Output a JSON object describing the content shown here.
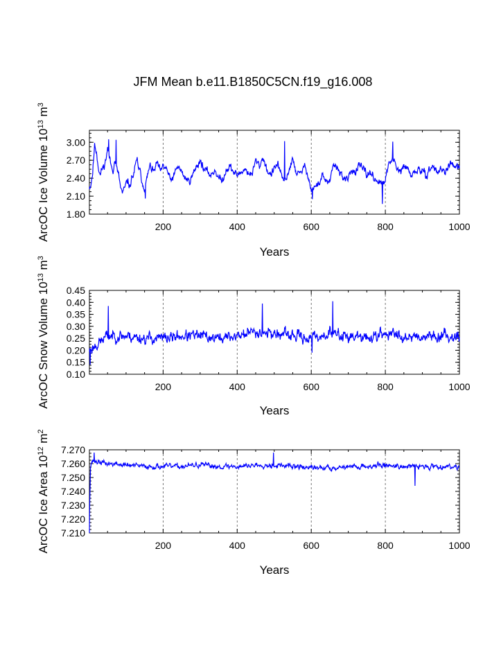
{
  "title": "JFM Mean b.e11.B1850C5CN.f19_g16.008",
  "line_color": "#0000ff",
  "chart_data": [
    {
      "type": "line",
      "title": "JFM Mean b.e11.B1850C5CN.f19_g16.008",
      "xlabel": "Years",
      "ylabel": "ArcOC Ice Volume 10",
      "ylabel_exp": "13",
      "ylabel_unit": " m",
      "ylabel_unit_exp": "3",
      "xlim": [
        1,
        1000
      ],
      "ylim": [
        1.8,
        3.2
      ],
      "xticks": [
        200,
        400,
        600,
        800,
        1000
      ],
      "yticks": [
        1.8,
        2.1,
        2.4,
        2.7,
        3.0
      ],
      "yticklabels": [
        "1.80",
        "2.10",
        "2.40",
        "2.70",
        "3.00"
      ],
      "grid": "vertical-dashed",
      "series": [
        {
          "name": "ArcOC Ice Volume",
          "anchors_x": [
            1,
            5,
            10,
            15,
            20,
            25,
            30,
            35,
            40,
            45,
            50,
            55,
            60,
            65,
            70,
            75,
            80,
            85,
            90,
            95,
            100,
            105,
            110,
            115,
            120,
            125,
            130,
            135,
            140,
            145,
            150,
            155,
            160,
            165,
            170,
            175,
            180,
            185,
            190,
            195,
            200,
            210,
            220,
            230,
            240,
            250,
            260,
            270,
            280,
            290,
            300,
            310,
            320,
            330,
            340,
            350,
            360,
            370,
            380,
            390,
            400,
            410,
            420,
            430,
            440,
            450,
            460,
            470,
            480,
            490,
            500,
            510,
            520,
            530,
            540,
            550,
            560,
            570,
            580,
            590,
            600,
            610,
            620,
            630,
            640,
            650,
            660,
            670,
            680,
            690,
            700,
            710,
            720,
            730,
            740,
            750,
            760,
            770,
            780,
            790,
            800,
            810,
            820,
            830,
            840,
            850,
            860,
            870,
            880,
            890,
            900,
            910,
            920,
            930,
            940,
            950,
            960,
            970,
            980,
            990,
            1000
          ],
          "anchors_y": [
            2.25,
            2.3,
            2.5,
            2.95,
            2.85,
            2.6,
            2.45,
            2.55,
            2.6,
            2.7,
            2.9,
            2.75,
            2.6,
            2.55,
            2.7,
            2.55,
            2.45,
            2.25,
            2.15,
            2.2,
            2.3,
            2.35,
            2.25,
            2.4,
            2.45,
            2.6,
            2.7,
            2.55,
            2.45,
            2.3,
            2.25,
            2.35,
            2.5,
            2.6,
            2.55,
            2.5,
            2.6,
            2.65,
            2.55,
            2.5,
            2.6,
            2.55,
            2.35,
            2.45,
            2.6,
            2.5,
            2.4,
            2.35,
            2.45,
            2.6,
            2.7,
            2.55,
            2.5,
            2.45,
            2.55,
            2.4,
            2.35,
            2.55,
            2.6,
            2.5,
            2.45,
            2.5,
            2.55,
            2.5,
            2.45,
            2.7,
            2.6,
            2.75,
            2.55,
            2.45,
            2.55,
            2.65,
            2.4,
            2.35,
            2.55,
            2.7,
            2.5,
            2.45,
            2.6,
            2.5,
            2.2,
            2.25,
            2.3,
            2.45,
            2.35,
            2.3,
            2.65,
            2.55,
            2.5,
            2.35,
            2.4,
            2.55,
            2.5,
            2.6,
            2.55,
            2.45,
            2.5,
            2.4,
            2.35,
            2.3,
            2.35,
            2.65,
            2.75,
            2.55,
            2.5,
            2.6,
            2.55,
            2.45,
            2.5,
            2.55,
            2.5,
            2.45,
            2.55,
            2.6,
            2.5,
            2.55,
            2.5,
            2.6,
            2.65,
            2.55,
            2.6
          ],
          "noise": 0.12,
          "seed": 11,
          "extremes": [
            [
              53,
              3.05
            ],
            [
              73,
              3.04
            ],
            [
              152,
              2.06
            ],
            [
              528,
              3.02
            ],
            [
              603,
              2.05
            ],
            [
              792,
              1.97
            ],
            [
              820,
              3.01
            ]
          ]
        }
      ]
    },
    {
      "type": "line",
      "xlabel": "Years",
      "ylabel": "ArcOC Snow Volume 10",
      "ylabel_exp": "13",
      "ylabel_unit": " m",
      "ylabel_unit_exp": "3",
      "xlim": [
        1,
        1000
      ],
      "ylim": [
        0.1,
        0.45
      ],
      "xticks": [
        200,
        400,
        600,
        800,
        1000
      ],
      "yticks": [
        0.1,
        0.15,
        0.2,
        0.25,
        0.3,
        0.35,
        0.4,
        0.45
      ],
      "yticklabels": [
        "0.10",
        "0.15",
        "0.20",
        "0.25",
        "0.30",
        "0.35",
        "0.40",
        "0.45"
      ],
      "grid": "vertical-dashed",
      "series": [
        {
          "name": "ArcOC Snow Volume",
          "anchors_x": [
            1,
            50,
            100,
            150,
            200,
            250,
            300,
            350,
            400,
            450,
            500,
            550,
            600,
            650,
            700,
            750,
            800,
            850,
            900,
            950,
            1000
          ],
          "anchors_y": [
            0.2,
            0.26,
            0.26,
            0.25,
            0.25,
            0.26,
            0.26,
            0.25,
            0.26,
            0.28,
            0.27,
            0.26,
            0.25,
            0.27,
            0.26,
            0.25,
            0.27,
            0.26,
            0.26,
            0.26,
            0.26
          ],
          "noise": 0.045,
          "seed": 23,
          "extremes": [
            [
              3,
              0.14
            ],
            [
              52,
              0.385
            ],
            [
              468,
              0.395
            ],
            [
              658,
              0.405
            ],
            [
              602,
              0.19
            ]
          ]
        }
      ]
    },
    {
      "type": "line",
      "xlabel": "Years",
      "ylabel": "ArcOC Ice Area 10",
      "ylabel_exp": "12",
      "ylabel_unit": " m",
      "ylabel_unit_exp": "2",
      "xlim": [
        1,
        1000
      ],
      "ylim": [
        7.21,
        7.27
      ],
      "xticks": [
        200,
        400,
        600,
        800,
        1000
      ],
      "yticks": [
        7.21,
        7.22,
        7.23,
        7.24,
        7.25,
        7.26,
        7.27
      ],
      "yticklabels": [
        "7.210",
        "7.220",
        "7.230",
        "7.240",
        "7.250",
        "7.260",
        "7.270"
      ],
      "grid": "vertical-dashed",
      "series": [
        {
          "name": "ArcOC Ice Area",
          "anchors_x": [
            1,
            2,
            4,
            8,
            50,
            100,
            150,
            200,
            250,
            300,
            350,
            400,
            450,
            500,
            550,
            600,
            650,
            700,
            750,
            800,
            850,
            900,
            950,
            1000
          ],
          "anchors_y": [
            7.21,
            7.235,
            7.258,
            7.262,
            7.26,
            7.259,
            7.258,
            7.258,
            7.258,
            7.259,
            7.258,
            7.258,
            7.259,
            7.259,
            7.258,
            7.257,
            7.257,
            7.258,
            7.258,
            7.259,
            7.258,
            7.258,
            7.258,
            7.258
          ],
          "noise": 0.0035,
          "seed": 37,
          "extremes": [
            [
              14,
              7.268
            ],
            [
              498,
              7.268
            ],
            [
              880,
              7.244
            ]
          ]
        }
      ]
    }
  ]
}
